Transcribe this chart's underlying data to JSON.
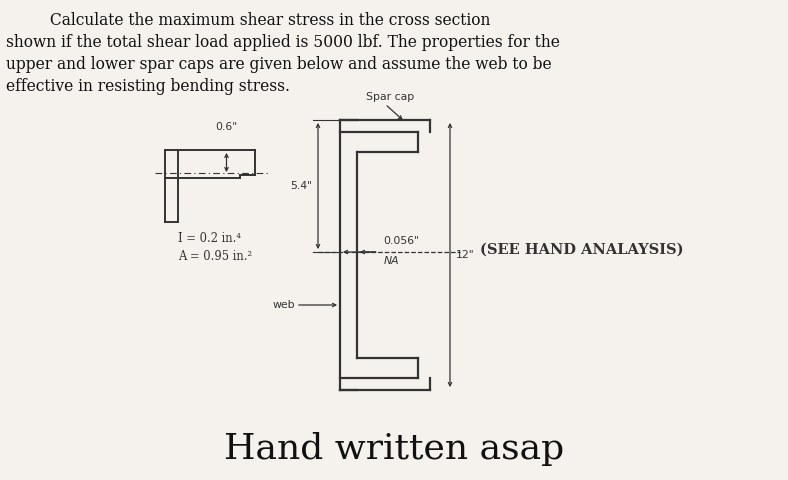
{
  "title_lines": [
    "         Calculate the maximum shear stress in the cross section",
    "shown if the total shear load applied is 5000 lbf. The properties for the",
    "upper and lower spar caps are given below and assume the web to be",
    "effective in resisting bending stress."
  ],
  "bottom_text": "Hand written asap",
  "label_I": "I = 0.2 in.⁴",
  "label_A": "A = 0.95 in.²",
  "label_06": "0.6\"",
  "label_54": "5.4\"",
  "label_0056": "0.056\"",
  "label_NA": "NA",
  "label_12": "12\"",
  "label_web": "web",
  "label_spar_cap": "Spar cap",
  "label_see_hand": "(SEE HAND ANALAYSIS)",
  "bg_color": "#f5f2ee",
  "line_color": "#333333",
  "text_color": "#111111",
  "font_size_title": 11.2,
  "font_size_label": 7.8,
  "font_size_bottom": 26
}
